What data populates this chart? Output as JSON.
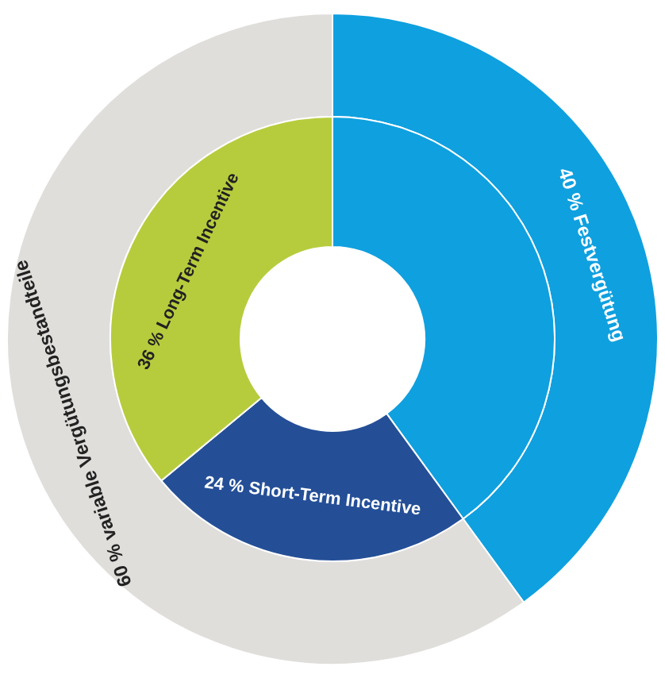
{
  "chart_data": [
    {
      "type": "donut",
      "categories": [
        "40 % Festvergütung",
        "60 % variable Vergütungsbestandteile"
      ],
      "values": [
        40,
        60
      ],
      "colors": [
        "#0fa0df",
        "#e0dedb"
      ]
    },
    {
      "type": "donut",
      "categories": [
        null,
        "24 % Short-Term Incentive",
        "36 % Long-Term Incentive"
      ],
      "values": [
        40,
        24,
        36
      ],
      "colors": [
        "#0fa0df",
        "#244f97",
        "#b7cc3d"
      ]
    }
  ]
}
